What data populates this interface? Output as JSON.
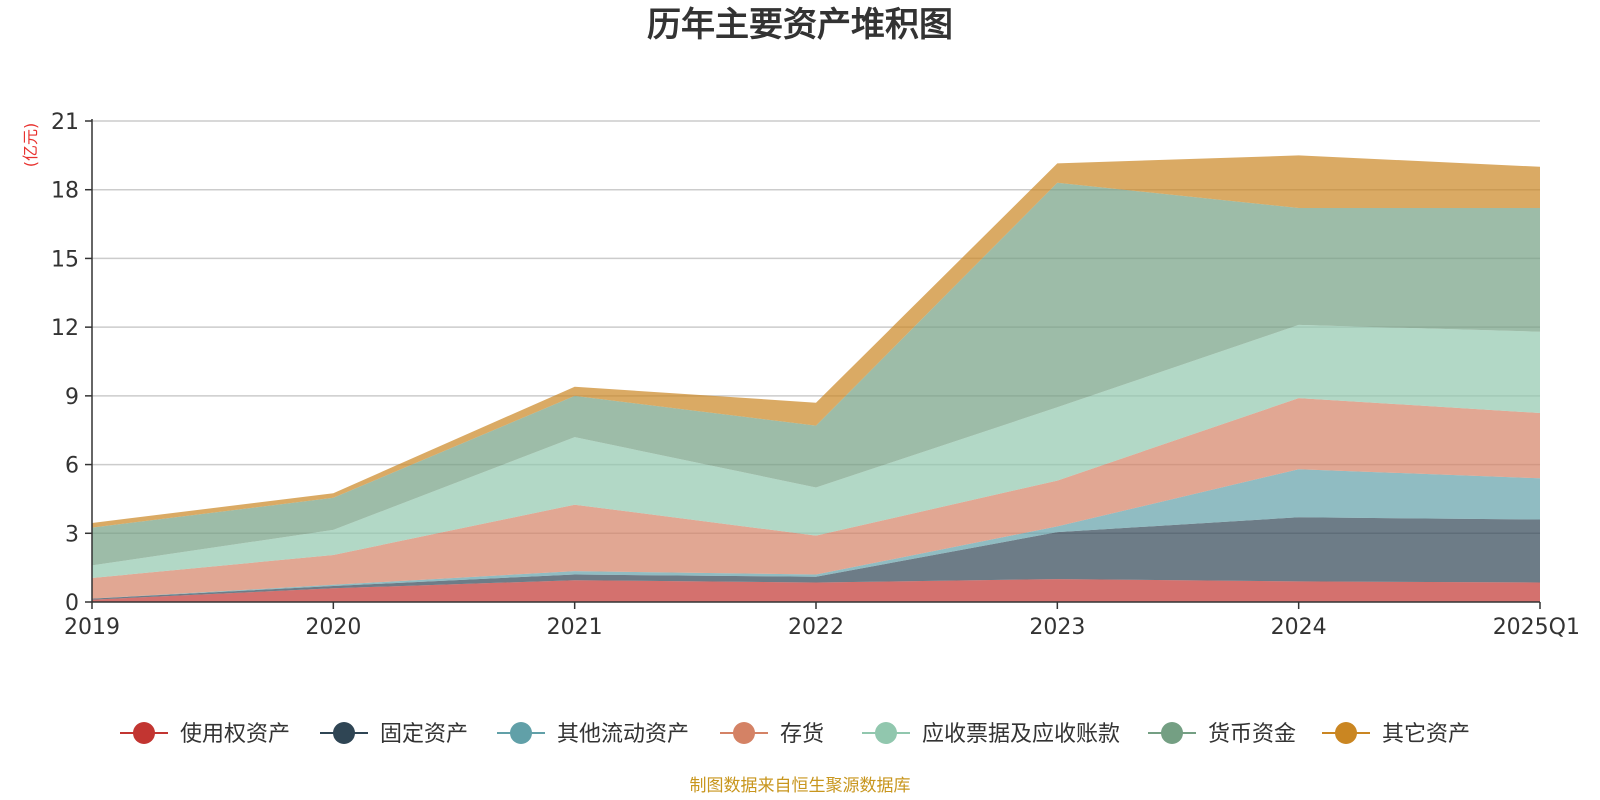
{
  "chart_data": {
    "type": "area",
    "stacked": true,
    "title": "历年主要资产堆积图",
    "unit_label": "(亿元)",
    "categories": [
      "2019",
      "2020",
      "2021",
      "2022",
      "2023",
      "2024",
      "2025Q1"
    ],
    "ylim": [
      0,
      21
    ],
    "yticks": [
      0,
      3,
      6,
      9,
      12,
      15,
      18,
      21
    ],
    "grid": true,
    "legend_position": "bottom",
    "series": [
      {
        "name": "使用权资产",
        "color": "#c23531",
        "values": [
          0.1,
          0.6,
          0.95,
          0.85,
          1.0,
          0.9,
          0.85
        ]
      },
      {
        "name": "固定资产",
        "color": "#2f4554",
        "values": [
          0.05,
          0.1,
          0.25,
          0.25,
          2.05,
          2.8,
          2.75
        ]
      },
      {
        "name": "其他流动资产",
        "color": "#61a0a8",
        "values": [
          0.0,
          0.05,
          0.15,
          0.1,
          0.25,
          2.1,
          1.8
        ]
      },
      {
        "name": "存货",
        "color": "#d48265",
        "values": [
          0.9,
          1.3,
          2.9,
          1.7,
          2.0,
          3.1,
          2.85
        ]
      },
      {
        "name": "应收票据及应收账款",
        "color": "#91c7ae",
        "values": [
          0.55,
          1.1,
          2.95,
          2.1,
          3.2,
          3.2,
          3.55
        ]
      },
      {
        "name": "货币资金",
        "color": "#749f83",
        "values": [
          1.65,
          1.4,
          1.8,
          2.7,
          9.8,
          5.1,
          5.4
        ]
      },
      {
        "name": "其它资产",
        "color": "#ca8622",
        "values": [
          0.2,
          0.2,
          0.4,
          1.0,
          0.85,
          2.3,
          1.8
        ]
      }
    ],
    "source_note": "制图数据来自恒生聚源数据库"
  }
}
